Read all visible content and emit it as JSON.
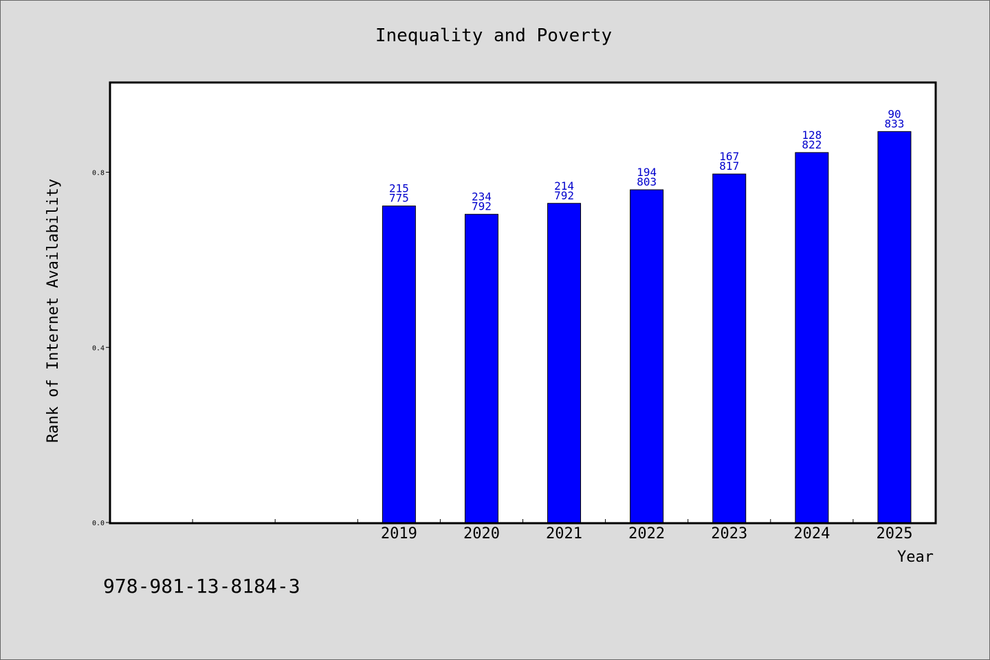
{
  "chart_data": {
    "type": "bar",
    "title": "Inequality and Poverty",
    "xlabel": "Year",
    "ylabel": "Rank of Internet Availability",
    "categories": [
      "",
      "",
      "",
      "2019",
      "2020",
      "2021",
      "2022",
      "2023",
      "2024",
      "2025"
    ],
    "values": [
      null,
      null,
      null,
      0.723,
      0.704,
      0.729,
      0.76,
      0.796,
      0.845,
      0.893
    ],
    "labels_top": [
      "",
      "",
      "",
      "215",
      "234",
      "214",
      "194",
      "167",
      "128",
      "90"
    ],
    "labels_bottom": [
      "",
      "",
      "",
      "775",
      "792",
      "792",
      "803",
      "817",
      "822",
      "833"
    ],
    "yticks": [
      "0.0",
      "0.4",
      "0.8"
    ],
    "ytick_values": [
      0.0,
      0.4,
      0.8
    ],
    "ylim": [
      0,
      1.005
    ],
    "grid": false,
    "bar_color": "#0000ff",
    "label_color": "#0000cc"
  },
  "footer": {
    "isbn": "978-981-13-8184-3"
  }
}
